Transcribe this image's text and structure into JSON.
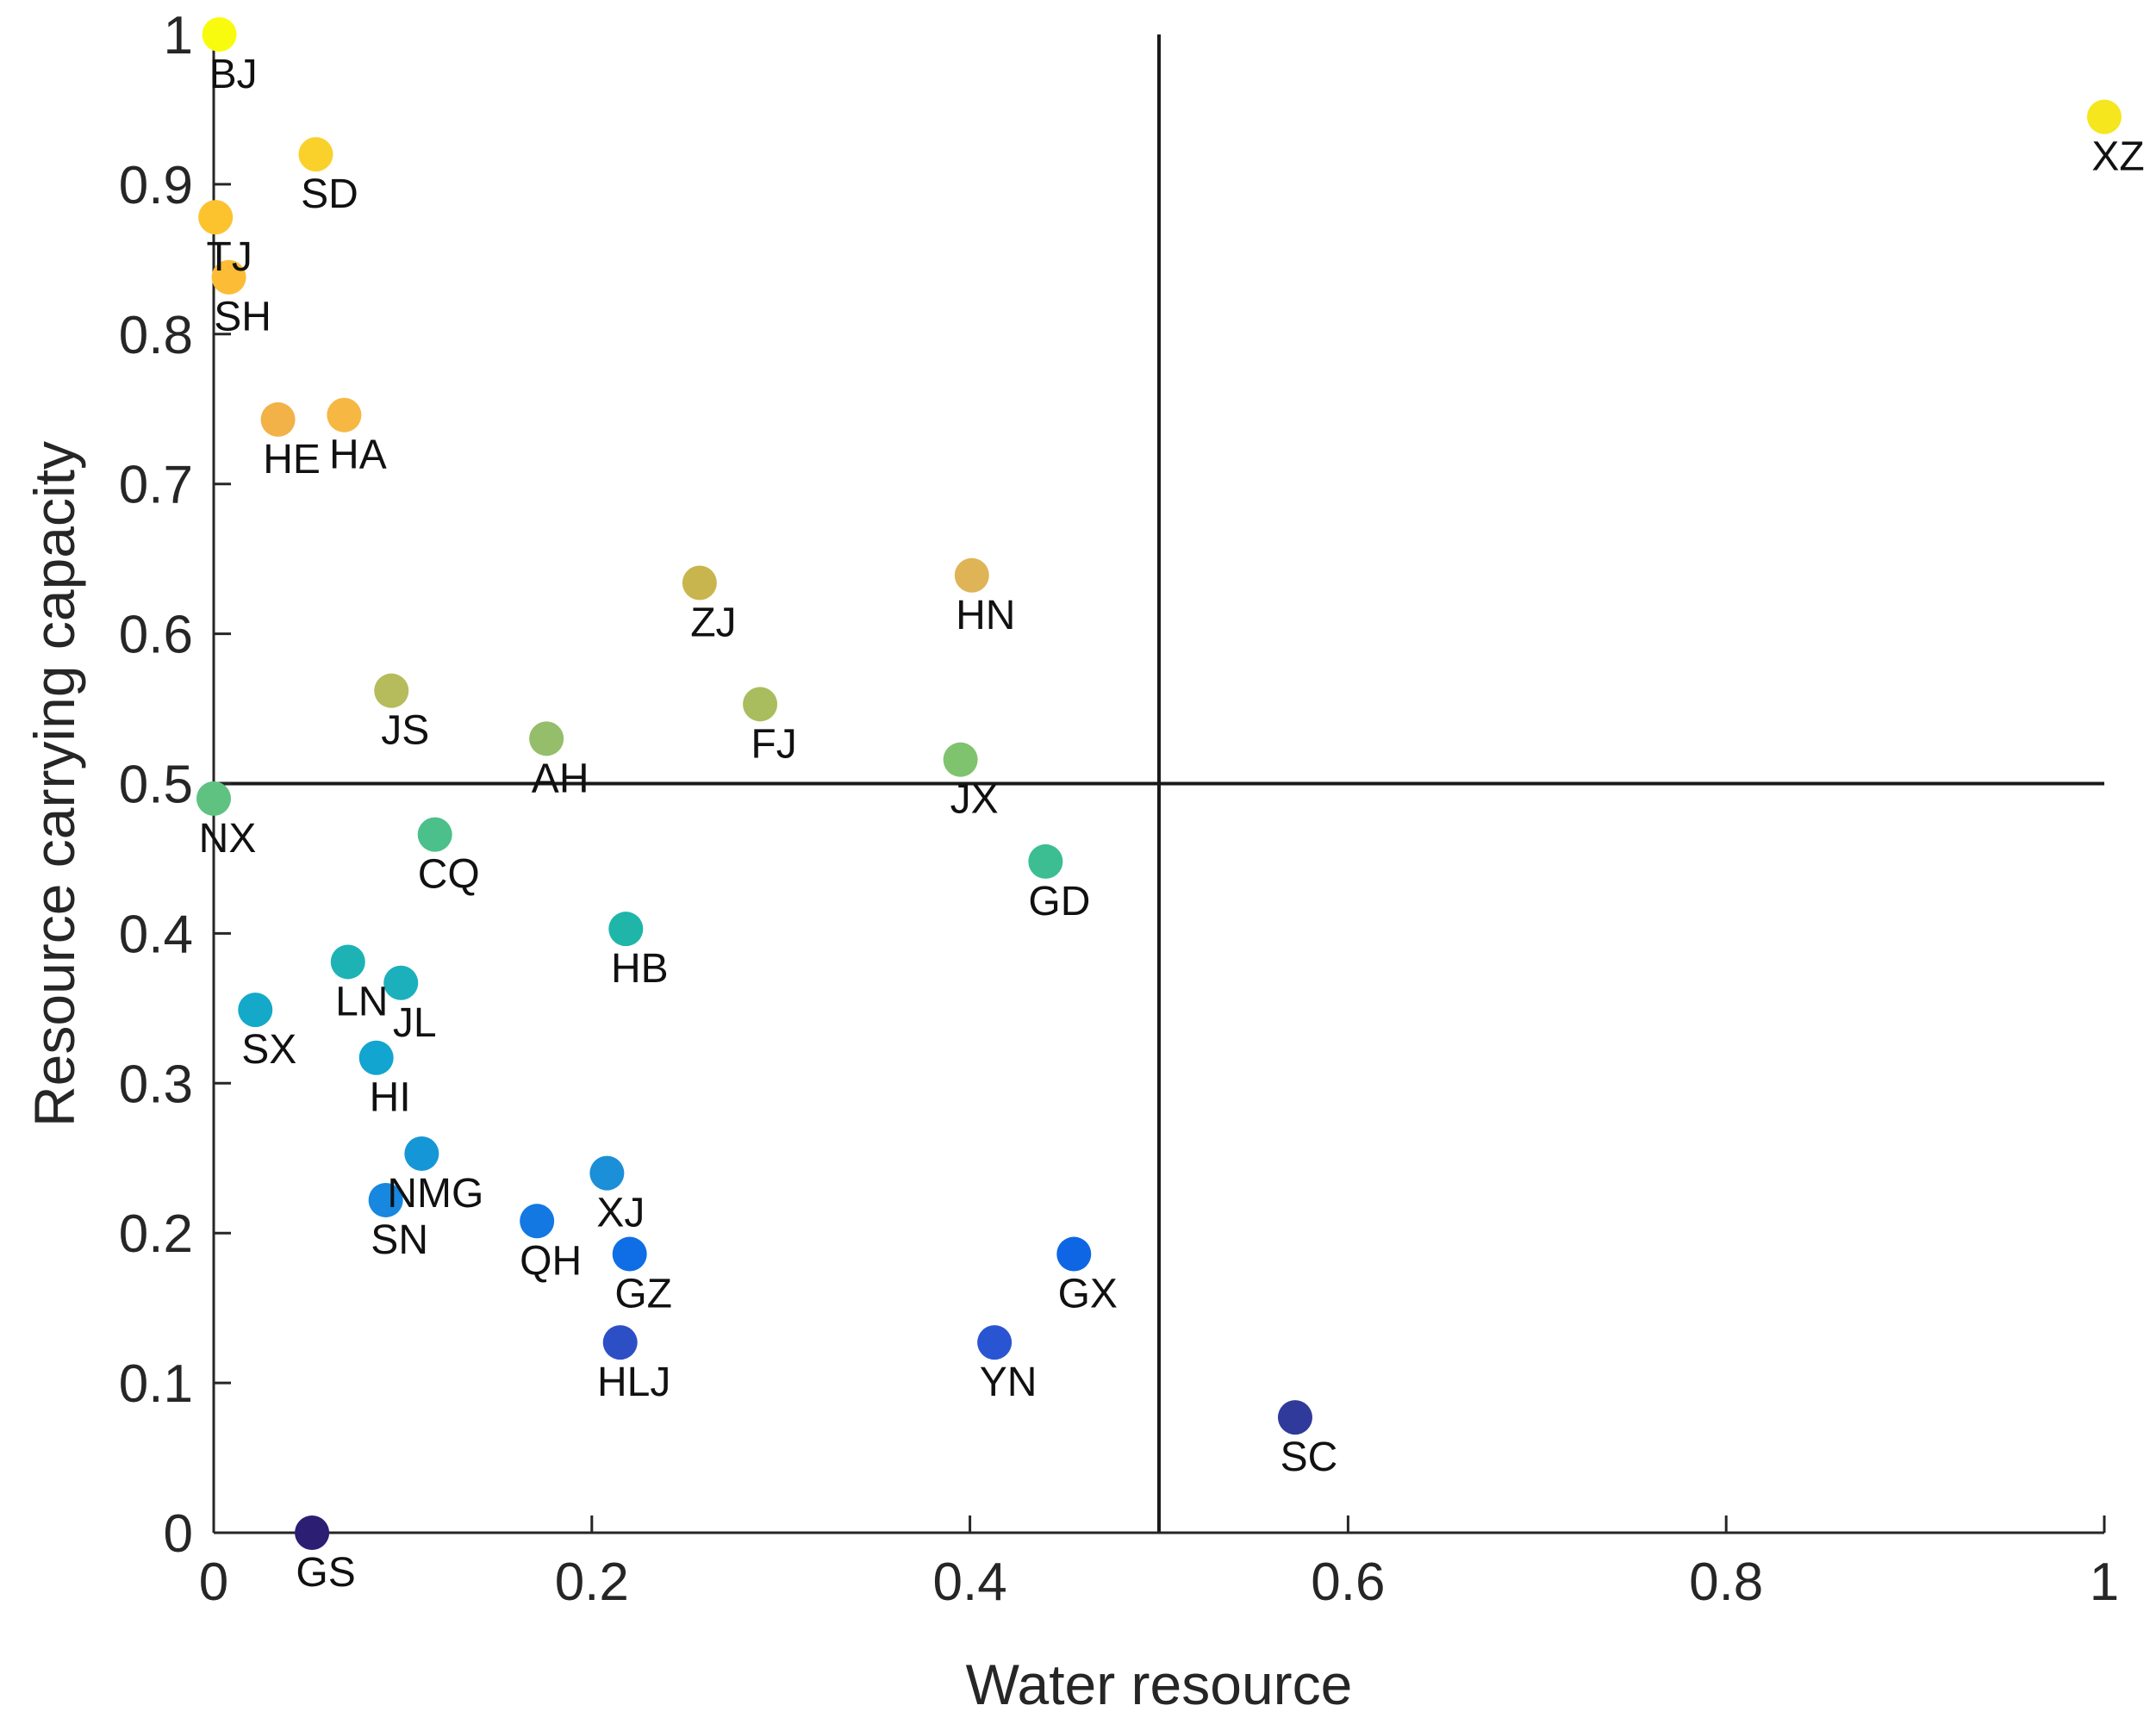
{
  "chart_data": {
    "type": "scatter",
    "title": "",
    "xlabel": "Water resource",
    "ylabel": "Resource carrying capacity",
    "xlim": [
      0,
      1
    ],
    "ylim": [
      0,
      1
    ],
    "x_ticks": [
      0,
      0.2,
      0.4,
      0.6,
      0.8,
      1
    ],
    "x_tick_labels": [
      "0",
      "0.2",
      "0.4",
      "0.6",
      "0.8",
      "1"
    ],
    "y_ticks": [
      0,
      0.1,
      0.2,
      0.3,
      0.4,
      0.5,
      0.6,
      0.7,
      0.8,
      0.9,
      1
    ],
    "y_tick_labels": [
      "0",
      "0.1",
      "0.2",
      "0.3",
      "0.4",
      "0.5",
      "0.6",
      "0.7",
      "0.8",
      "0.9",
      "1"
    ],
    "reference_lines": {
      "x": 0.5,
      "y": 0.5
    },
    "grid": false,
    "points": [
      {
        "label": "BJ",
        "x": 0.003,
        "y": 1.0,
        "color": "#f9fb0e"
      },
      {
        "label": "XZ",
        "x": 1.0,
        "y": 0.945,
        "color": "#f5e61e"
      },
      {
        "label": "SD",
        "x": 0.054,
        "y": 0.92,
        "color": "#f9d12a"
      },
      {
        "label": "TJ",
        "x": 0.001,
        "y": 0.878,
        "color": "#fcc32e"
      },
      {
        "label": "SH",
        "x": 0.008,
        "y": 0.838,
        "color": "#fcbc35"
      },
      {
        "label": "HE",
        "x": 0.034,
        "y": 0.743,
        "color": "#f2b248"
      },
      {
        "label": "HA",
        "x": 0.069,
        "y": 0.746,
        "color": "#f6b842"
      },
      {
        "label": "ZJ",
        "x": 0.257,
        "y": 0.634,
        "color": "#c9b54e"
      },
      {
        "label": "HN",
        "x": 0.401,
        "y": 0.639,
        "color": "#deb457"
      },
      {
        "label": "JS",
        "x": 0.094,
        "y": 0.562,
        "color": "#b6bb5c"
      },
      {
        "label": "FJ",
        "x": 0.289,
        "y": 0.553,
        "color": "#a9bd5e"
      },
      {
        "label": "AH",
        "x": 0.176,
        "y": 0.53,
        "color": "#94be6a"
      },
      {
        "label": "JX",
        "x": 0.395,
        "y": 0.516,
        "color": "#7fc36f"
      },
      {
        "label": "NX",
        "x": 0.0,
        "y": 0.49,
        "color": "#5fc280"
      },
      {
        "label": "CQ",
        "x": 0.117,
        "y": 0.466,
        "color": "#4bc08b"
      },
      {
        "label": "GD",
        "x": 0.44,
        "y": 0.448,
        "color": "#3cbd92"
      },
      {
        "label": "HB",
        "x": 0.218,
        "y": 0.403,
        "color": "#1fb5a9"
      },
      {
        "label": "LN",
        "x": 0.071,
        "y": 0.381,
        "color": "#1db3b5"
      },
      {
        "label": "JL",
        "x": 0.099,
        "y": 0.367,
        "color": "#1cb0bc"
      },
      {
        "label": "SX",
        "x": 0.022,
        "y": 0.349,
        "color": "#14a9c8"
      },
      {
        "label": "HI",
        "x": 0.086,
        "y": 0.317,
        "color": "#11a5cf"
      },
      {
        "label": "NMG",
        "x": 0.11,
        "y": 0.253,
        "color": "#1597d7"
      },
      {
        "label": "XJ",
        "x": 0.208,
        "y": 0.24,
        "color": "#1b8fd8"
      },
      {
        "label": "SN",
        "x": 0.091,
        "y": 0.222,
        "color": "#1787df"
      },
      {
        "label": "QH",
        "x": 0.171,
        "y": 0.208,
        "color": "#1378e2"
      },
      {
        "label": "GZ",
        "x": 0.22,
        "y": 0.186,
        "color": "#0f6ee6"
      },
      {
        "label": "GX",
        "x": 0.455,
        "y": 0.186,
        "color": "#0e66e4"
      },
      {
        "label": "HLJ",
        "x": 0.215,
        "y": 0.127,
        "color": "#2d4fc6"
      },
      {
        "label": "YN",
        "x": 0.413,
        "y": 0.127,
        "color": "#2a55d2"
      },
      {
        "label": "SC",
        "x": 0.572,
        "y": 0.077,
        "color": "#2f3a9a"
      },
      {
        "label": "GS",
        "x": 0.052,
        "y": 0.0,
        "color": "#2c1e72"
      }
    ]
  }
}
